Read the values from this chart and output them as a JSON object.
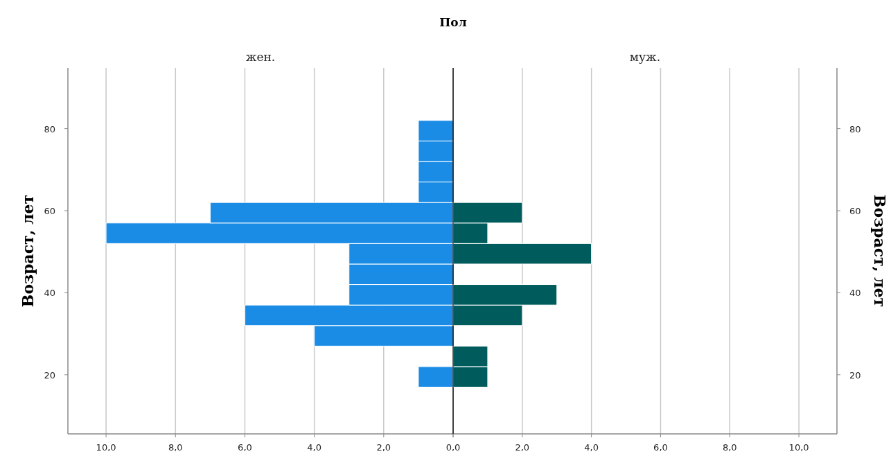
{
  "chart_data": [
    {
      "type": "histogram",
      "orientation": "horizontal",
      "title": "жен.",
      "annotations": [
        "Пол"
      ],
      "ylabel": "Возраст, лет",
      "bins": [
        17,
        22,
        27,
        32,
        37,
        42,
        47,
        52,
        57,
        62,
        67,
        72,
        77,
        82
      ],
      "series": [
        {
          "color": "#1a8ce6",
          "values": [
            1,
            0,
            4,
            6,
            3,
            3,
            3,
            10,
            7,
            1,
            1,
            1,
            1
          ]
        }
      ],
      "xlim": [
        11.1,
        0
      ],
      "xticks": [
        {
          "value": 10,
          "label": "10,0"
        },
        {
          "value": 8,
          "label": "8,0"
        },
        {
          "value": 6,
          "label": "6,0"
        },
        {
          "value": 4,
          "label": "4,0"
        },
        {
          "value": 2,
          "label": "2,0"
        },
        {
          "value": 0,
          "label": null
        }
      ],
      "ylim": [
        5.6,
        94.8
      ],
      "yticks": [
        20,
        40,
        60,
        80
      ],
      "grid": "x"
    },
    {
      "type": "histogram",
      "orientation": "horizontal",
      "title": "муж.",
      "ylabel": "Возраст, лет",
      "bins": [
        17,
        22,
        27,
        32,
        37,
        42,
        47,
        52,
        57,
        62,
        67,
        72,
        77,
        82
      ],
      "series": [
        {
          "color": "#005c5c",
          "values": [
            1,
            1,
            0,
            2,
            3,
            0,
            4,
            1,
            2,
            0,
            0,
            0,
            0
          ]
        }
      ],
      "xlim": [
        0,
        11.1
      ],
      "xticks": [
        {
          "value": 0,
          "label": "0,0"
        },
        {
          "value": 2,
          "label": "2,0"
        },
        {
          "value": 4,
          "label": "4,0"
        },
        {
          "value": 6,
          "label": "6,0"
        },
        {
          "value": 8,
          "label": "8,0"
        },
        {
          "value": 10,
          "label": "10,0"
        }
      ],
      "ylim": [
        5.6,
        94.8
      ],
      "yticks": [
        20,
        40,
        60,
        80
      ],
      "grid": "x"
    }
  ]
}
